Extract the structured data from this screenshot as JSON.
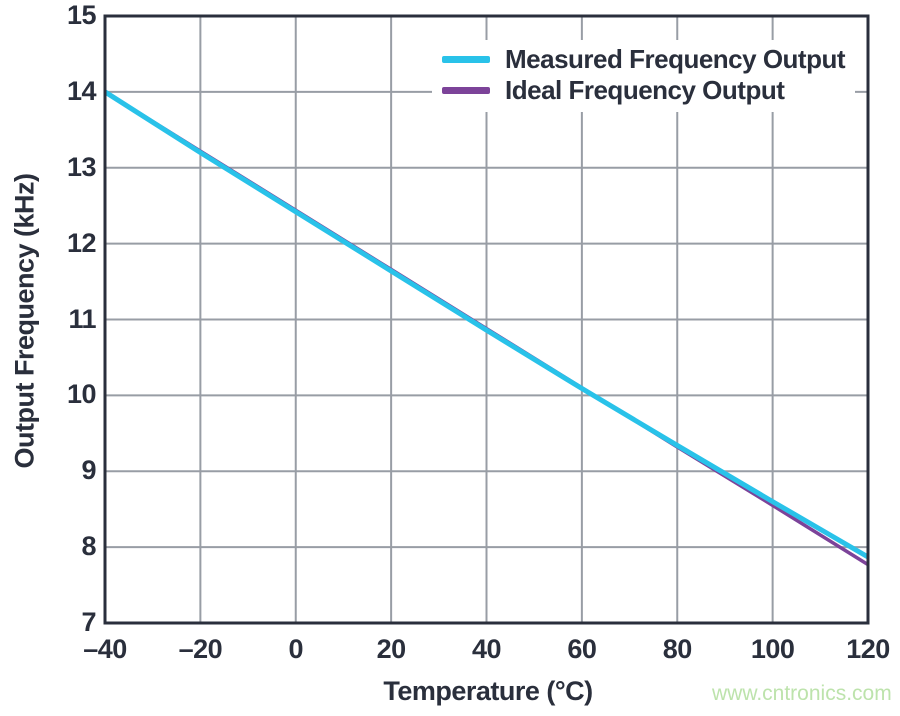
{
  "chart_data": {
    "type": "line",
    "x": [
      -40,
      -20,
      0,
      20,
      40,
      60,
      80,
      100,
      120
    ],
    "series": [
      {
        "name": "Measured Frequency Output",
        "color": "#29C2E9",
        "values": [
          14.0,
          13.2,
          12.42,
          11.64,
          10.86,
          10.09,
          9.34,
          8.6,
          7.87
        ]
      },
      {
        "name": "Ideal Frequency Output",
        "color": "#7C4399",
        "values": [
          14.0,
          13.22,
          12.44,
          11.66,
          10.88,
          10.1,
          9.32,
          8.55,
          7.77
        ]
      }
    ],
    "title": "",
    "xlabel": "Temperature (°C)",
    "ylabel": "Output Frequency (kHz)",
    "xlim": [
      -40,
      120
    ],
    "ylim": [
      7,
      15
    ],
    "x_tick_labels": [
      "–40",
      "–20",
      "0",
      "20",
      "40",
      "60",
      "80",
      "100",
      "120"
    ],
    "y_ticks": [
      7,
      8,
      9,
      10,
      11,
      12,
      13,
      14,
      15
    ],
    "y_tick_labels": [
      "7",
      "8",
      "9",
      "10",
      "11",
      "12",
      "13",
      "14",
      "15"
    ],
    "grid": true,
    "legend_position": "top-right-inside"
  },
  "watermark": {
    "text": "www.cntronics.com",
    "color": "#BDE3AC"
  },
  "colors": {
    "axis": "#2A2F3C",
    "grid": "#989DA5",
    "background": "#FFFFFF",
    "text": "#2A2F3C"
  }
}
